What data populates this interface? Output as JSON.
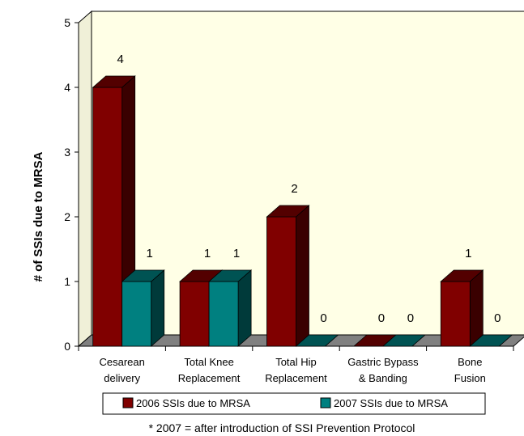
{
  "chart_data": {
    "type": "bar",
    "ylabel": "# of SSIs due to MRSA",
    "ylim": [
      0,
      5
    ],
    "yticks": [
      "0",
      "1",
      "2",
      "3",
      "4",
      "5"
    ],
    "categories": [
      [
        "Cesarean",
        "delivery"
      ],
      [
        "Total Knee",
        "Replacement"
      ],
      [
        "Total Hip",
        "Replacement"
      ],
      [
        "Gastric Bypass",
        "& Banding"
      ],
      [
        "Bone",
        "Fusion"
      ]
    ],
    "series": [
      {
        "name": "2006 SSIs due to MRSA",
        "values": [
          4,
          1,
          2,
          0,
          1
        ],
        "color": "#800000"
      },
      {
        "name": "2007 SSIs due to MRSA",
        "values": [
          1,
          1,
          0,
          0,
          0
        ],
        "color": "#008080"
      }
    ],
    "legend_position": "bottom",
    "grid": false,
    "three_d": true
  },
  "footnote": "* 2007 = after introduction of SSI Prevention Protocol"
}
